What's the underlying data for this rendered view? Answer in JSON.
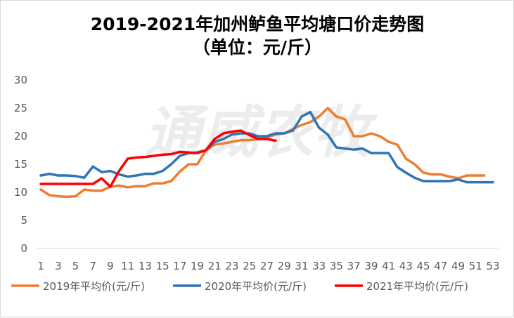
{
  "chart_data": {
    "type": "line",
    "title": "2019-2021年加州鲈鱼平均塘口价走势图",
    "subtitle": "（单位：元/斤）",
    "watermark": "通威农牧",
    "xlabel": "",
    "ylabel": "",
    "x": [
      1,
      2,
      3,
      4,
      5,
      6,
      7,
      8,
      9,
      10,
      11,
      12,
      13,
      14,
      15,
      16,
      17,
      18,
      19,
      20,
      21,
      22,
      23,
      24,
      25,
      26,
      27,
      28,
      29,
      30,
      31,
      32,
      33,
      34,
      35,
      36,
      37,
      38,
      39,
      40,
      41,
      42,
      43,
      44,
      45,
      46,
      47,
      48,
      49,
      50,
      51,
      52,
      53
    ],
    "x_tick_labels": [
      "1",
      "3",
      "5",
      "7",
      "9",
      "11",
      "13",
      "15",
      "17",
      "19",
      "21",
      "23",
      "25",
      "27",
      "29",
      "31",
      "33",
      "35",
      "37",
      "39",
      "41",
      "43",
      "45",
      "47",
      "49",
      "51",
      "53"
    ],
    "y_tick_labels": [
      "0",
      "5",
      "10",
      "15",
      "20",
      "25",
      "30"
    ],
    "xlim": [
      1,
      53
    ],
    "ylim": [
      0,
      30
    ],
    "grid": false,
    "legend_position": "bottom",
    "series": [
      {
        "name": "2019年平均价(元/斤)",
        "color": "#ED7D31",
        "values": [
          10.5,
          9.5,
          9.3,
          9.2,
          9.3,
          10.5,
          10.3,
          10.3,
          11.0,
          11.2,
          10.9,
          11.1,
          11.1,
          11.6,
          11.6,
          12.0,
          13.7,
          15.0,
          15.0,
          17.5,
          18.5,
          18.7,
          19.0,
          19.3,
          19.3,
          19.5,
          19.8,
          20.3,
          20.5,
          21.3,
          22.0,
          22.5,
          23.5,
          25.0,
          23.5,
          23.0,
          20.0,
          20.0,
          20.5,
          20.0,
          19.0,
          18.5,
          16.0,
          15.0,
          13.5,
          13.2,
          13.2,
          12.8,
          12.5,
          13.0,
          13.0,
          13.0,
          null
        ]
      },
      {
        "name": "2020年平均价(元/斤)",
        "color": "#2E75B6",
        "values": [
          13.0,
          13.3,
          13.0,
          13.0,
          12.9,
          12.6,
          14.6,
          13.6,
          13.8,
          13.2,
          12.8,
          13.0,
          13.3,
          13.3,
          13.8,
          15.0,
          16.5,
          17.0,
          17.1,
          17.5,
          19.0,
          19.5,
          20.3,
          20.5,
          20.5,
          20.0,
          20.0,
          20.5,
          20.5,
          21.0,
          23.5,
          24.3,
          21.5,
          20.3,
          18.0,
          17.8,
          17.6,
          17.8,
          17.0,
          17.0,
          17.0,
          14.5,
          13.5,
          12.6,
          12.0,
          12.0,
          12.0,
          12.0,
          12.3,
          11.8,
          11.8,
          11.8,
          11.8
        ]
      },
      {
        "name": "2021年平均价(元/斤)",
        "color": "#FF0000",
        "values": [
          11.5,
          11.5,
          11.5,
          11.5,
          11.5,
          11.5,
          11.5,
          12.5,
          11.0,
          13.8,
          16.0,
          16.2,
          16.3,
          16.5,
          16.7,
          16.8,
          17.2,
          17.1,
          17.0,
          17.5,
          19.5,
          20.5,
          20.8,
          21.0,
          20.2,
          19.5,
          19.5,
          19.2,
          null,
          null,
          null,
          null,
          null,
          null,
          null,
          null,
          null,
          null,
          null,
          null,
          null,
          null,
          null,
          null,
          null,
          null,
          null,
          null,
          null,
          null,
          null,
          null,
          null
        ]
      }
    ]
  }
}
